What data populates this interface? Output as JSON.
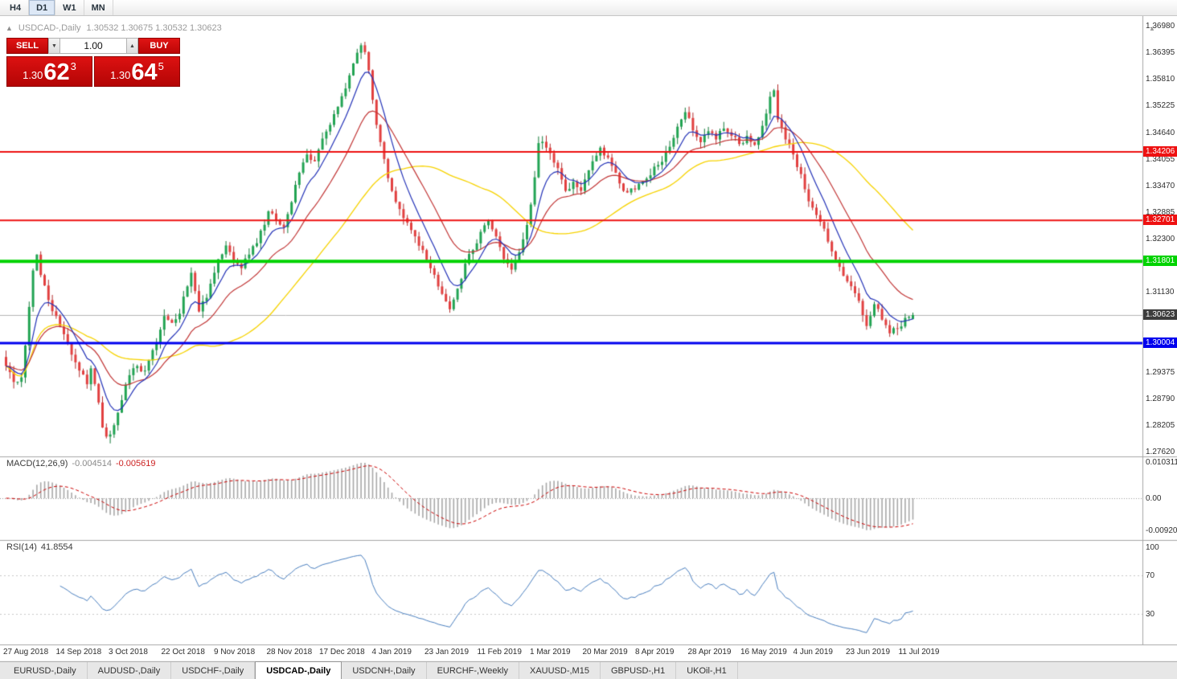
{
  "toolbar": {
    "timeframes": [
      {
        "label": "H4",
        "active": false
      },
      {
        "label": "D1",
        "active": true
      },
      {
        "label": "W1",
        "active": false
      },
      {
        "label": "MN",
        "active": false
      }
    ]
  },
  "chart_header": {
    "collapse_icon": "▲",
    "symbol_title": "USDCAD-,Daily",
    "ohlc_text": "1.30532 1.30675 1.30532 1.30623"
  },
  "trade_panel": {
    "sell_label": "SELL",
    "buy_label": "BUY",
    "volume_value": "1.00",
    "spin_down_icon": "▼",
    "spin_up_icon": "▲",
    "sell_price": {
      "small": "1.30",
      "big": "62",
      "sup": "3"
    },
    "buy_price": {
      "small": "1.30",
      "big": "64",
      "sup": "5"
    }
  },
  "indicator_labels": {
    "macd": {
      "name": "MACD(12,26,9)",
      "main_value": "-0.004514",
      "signal_value": "-0.005619"
    },
    "rsi": {
      "name": "RSI(14)",
      "value": "41.8554"
    }
  },
  "tabs": [
    {
      "label": "EURUSD-,Daily",
      "active": false
    },
    {
      "label": "AUDUSD-,Daily",
      "active": false
    },
    {
      "label": "USDCHF-,Daily",
      "active": false
    },
    {
      "label": "USDCAD-,Daily",
      "active": true
    },
    {
      "label": "USDCNH-,Daily",
      "active": false
    },
    {
      "label": "EURCHF-,Weekly",
      "active": false
    },
    {
      "label": "XAUUSD-,M15",
      "active": false
    },
    {
      "label": "GBPUSD-,H1",
      "active": false
    },
    {
      "label": "UKOil-,H1",
      "active": false
    }
  ],
  "chart_data": {
    "type": "candlestick",
    "symbol": "USDCAD-",
    "timeframe": "Daily",
    "current": {
      "open": 1.30532,
      "high": 1.30675,
      "low": 1.30532,
      "close": 1.30623
    },
    "y_range": {
      "top": 1.3698,
      "bottom": 1.2762,
      "tick_step": 0.00585
    },
    "y_axis_ticks": [
      "1.36980",
      "1.36395",
      "1.35810",
      "1.35225",
      "1.34640",
      "1.34055",
      "1.33470",
      "1.32885",
      "1.32300",
      "1.31715",
      "1.31130",
      "1.30545",
      "1.29960",
      "1.29375",
      "1.28790",
      "1.28205",
      "1.27620"
    ],
    "x_axis_dates": [
      "27 Aug 2018",
      "14 Sep 2018",
      "3 Oct 2018",
      "22 Oct 2018",
      "9 Nov 2018",
      "28 Nov 2018",
      "17 Dec 2018",
      "4 Jan 2019",
      "23 Jan 2019",
      "11 Feb 2019",
      "1 Mar 2019",
      "20 Mar 2019",
      "8 Apr 2019",
      "28 Apr 2019",
      "16 May 2019",
      "4 Jun 2019",
      "23 Jun 2019",
      "11 Jul 2019"
    ],
    "horizontal_lines": [
      {
        "price": 1.34206,
        "label": "1.34206",
        "color": "#ee1111",
        "width": 2
      },
      {
        "price": 1.32701,
        "label": "1.32701",
        "color": "#ee1111",
        "width": 2
      },
      {
        "price": 1.31801,
        "label": "1.31801",
        "color": "#00d300",
        "width": 4
      },
      {
        "price": 1.30004,
        "label": "1.30004",
        "color": "#0000ee",
        "width": 3
      }
    ],
    "bid_line": {
      "price": 1.30623,
      "label": "1.30623",
      "line_color": "#b4b4b4",
      "tag_color": "#3c3c3c",
      "width": 1
    },
    "macd_axis_ticks": [
      "0.010311",
      "0.00",
      "-0.009203"
    ],
    "rsi_axis_ticks": [
      "100",
      "70",
      "30"
    ],
    "rsi_levels": [
      70,
      30
    ],
    "candle_count": 236,
    "price_path_anchors": [
      [
        0,
        1.295
      ],
      [
        2,
        1.2915
      ],
      [
        4,
        1.2925
      ],
      [
        5,
        1.2995
      ],
      [
        6,
        1.308
      ],
      [
        7,
        1.316
      ],
      [
        8,
        1.3195
      ],
      [
        9,
        1.315
      ],
      [
        11,
        1.3095
      ],
      [
        13,
        1.306
      ],
      [
        15,
        1.302
      ],
      [
        17,
        1.2975
      ],
      [
        19,
        1.294
      ],
      [
        21,
        1.291
      ],
      [
        22,
        1.2945
      ],
      [
        24,
        1.287
      ],
      [
        25,
        1.2815
      ],
      [
        26,
        1.2795
      ],
      [
        28,
        1.282
      ],
      [
        30,
        1.2875
      ],
      [
        32,
        1.293
      ],
      [
        34,
        1.295
      ],
      [
        36,
        1.294
      ],
      [
        38,
        1.2985
      ],
      [
        40,
        1.303
      ],
      [
        41,
        1.306
      ],
      [
        43,
        1.3045
      ],
      [
        45,
        1.3065
      ],
      [
        47,
        1.3125
      ],
      [
        48,
        1.3155
      ],
      [
        50,
        1.307
      ],
      [
        52,
        1.31
      ],
      [
        55,
        1.3185
      ],
      [
        57,
        1.3215
      ],
      [
        59,
        1.318
      ],
      [
        61,
        1.3165
      ],
      [
        63,
        1.3195
      ],
      [
        65,
        1.322
      ],
      [
        68,
        1.329
      ],
      [
        70,
        1.327
      ],
      [
        72,
        1.3255
      ],
      [
        74,
        1.331
      ],
      [
        76,
        1.3375
      ],
      [
        78,
        1.3415
      ],
      [
        80,
        1.34
      ],
      [
        82,
        1.345
      ],
      [
        84,
        1.348
      ],
      [
        86,
        1.352
      ],
      [
        88,
        1.356
      ],
      [
        90,
        1.3615
      ],
      [
        92,
        1.3655
      ],
      [
        93,
        1.364
      ],
      [
        94,
        1.36
      ],
      [
        95,
        1.3535
      ],
      [
        96,
        1.348
      ],
      [
        98,
        1.3405
      ],
      [
        100,
        1.3335
      ],
      [
        102,
        1.3295
      ],
      [
        104,
        1.3265
      ],
      [
        106,
        1.3235
      ],
      [
        108,
        1.3205
      ],
      [
        110,
        1.3165
      ],
      [
        112,
        1.3125
      ],
      [
        114,
        1.3092
      ],
      [
        115,
        1.3075
      ],
      [
        117,
        1.312
      ],
      [
        119,
        1.3175
      ],
      [
        121,
        1.3205
      ],
      [
        123,
        1.3245
      ],
      [
        125,
        1.327
      ],
      [
        127,
        1.3235
      ],
      [
        129,
        1.3185
      ],
      [
        131,
        1.3162
      ],
      [
        133,
        1.32
      ],
      [
        135,
        1.326
      ],
      [
        136,
        1.3305
      ],
      [
        138,
        1.344
      ],
      [
        140,
        1.343
      ],
      [
        143,
        1.3385
      ],
      [
        145,
        1.3335
      ],
      [
        147,
        1.3355
      ],
      [
        149,
        1.3335
      ],
      [
        150,
        1.336
      ],
      [
        152,
        1.34
      ],
      [
        154,
        1.343
      ],
      [
        157,
        1.339
      ],
      [
        160,
        1.3335
      ],
      [
        163,
        1.3338
      ],
      [
        166,
        1.3362
      ],
      [
        169,
        1.3392
      ],
      [
        172,
        1.3432
      ],
      [
        175,
        1.3492
      ],
      [
        176,
        1.3508
      ],
      [
        178,
        1.3468
      ],
      [
        180,
        1.3442
      ],
      [
        182,
        1.3466
      ],
      [
        184,
        1.3448
      ],
      [
        186,
        1.3472
      ],
      [
        188,
        1.3456
      ],
      [
        190,
        1.3438
      ],
      [
        192,
        1.3456
      ],
      [
        194,
        1.3436
      ],
      [
        196,
        1.3478
      ],
      [
        198,
        1.3542
      ],
      [
        199,
        1.3556
      ],
      [
        200,
        1.3492
      ],
      [
        202,
        1.3448
      ],
      [
        204,
        1.3415
      ],
      [
        206,
        1.3372
      ],
      [
        208,
        1.3312
      ],
      [
        210,
        1.3282
      ],
      [
        212,
        1.3252
      ],
      [
        214,
        1.3202
      ],
      [
        216,
        1.3168
      ],
      [
        218,
        1.3136
      ],
      [
        220,
        1.311
      ],
      [
        222,
        1.3062
      ],
      [
        223,
        1.3038
      ],
      [
        225,
        1.3086
      ],
      [
        227,
        1.3052
      ],
      [
        229,
        1.3022
      ],
      [
        231,
        1.3032
      ],
      [
        233,
        1.3056
      ],
      [
        235,
        1.30623
      ]
    ],
    "moving_averages": [
      {
        "period": 8,
        "type": "ema",
        "color": "#2433b8"
      },
      {
        "period": 20,
        "type": "ema",
        "color": "#c23636"
      },
      {
        "period": 45,
        "type": "sma",
        "color": "#f7d300"
      }
    ],
    "macd": {
      "fast": 12,
      "slow": 26,
      "signal": 9,
      "current_main": -0.004514,
      "current_signal": -0.005619
    },
    "rsi": {
      "period": 14,
      "current": 41.8554
    },
    "colors": {
      "up": "#22a453",
      "up_border": "#157a3a",
      "down": "#e24040",
      "down_border": "#b32c2c",
      "macd_hist": "#a8a8a8",
      "macd_signal": "#cc0000",
      "rsi_line": "#4a7fc0",
      "separator": "#a6a6a6"
    }
  }
}
